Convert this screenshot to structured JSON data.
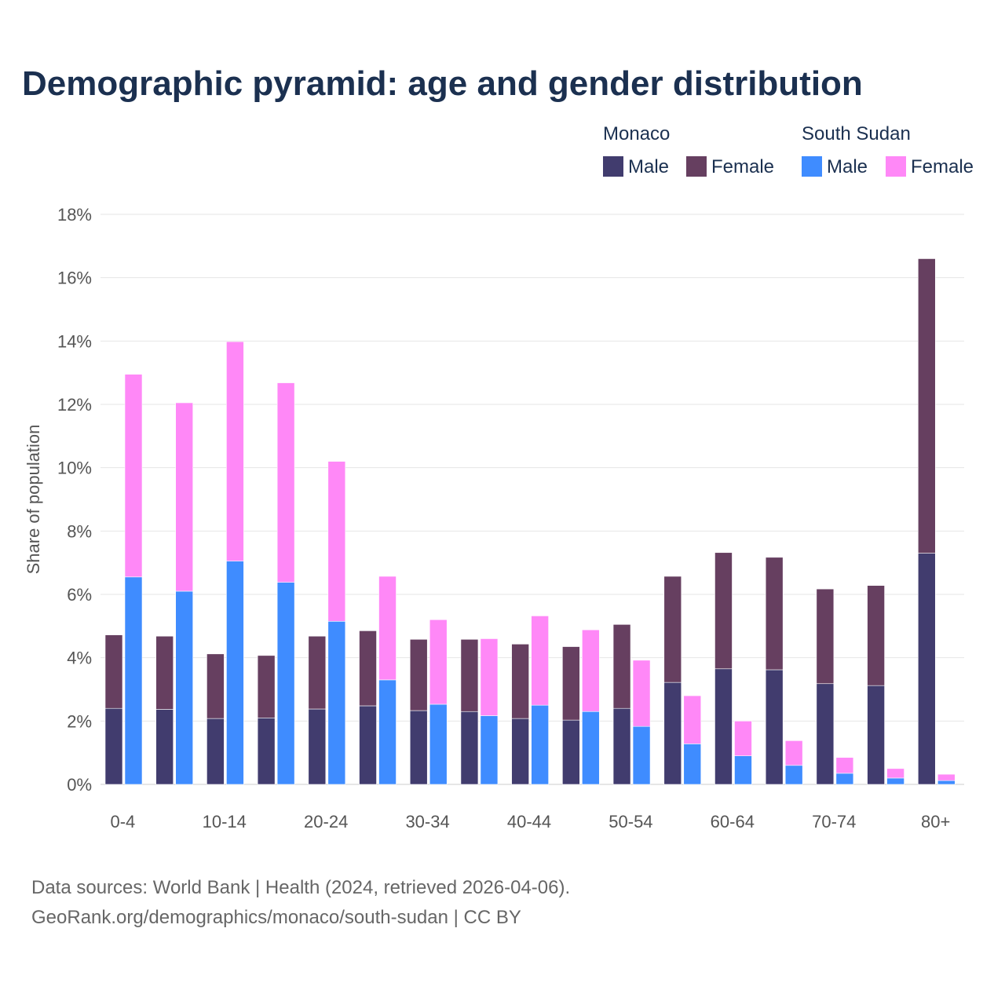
{
  "chart_data": {
    "type": "bar",
    "title": "Demographic pyramid: age and gender distribution",
    "ylabel": "Share of population",
    "xlabel": "",
    "ylim": [
      0,
      18
    ],
    "yticks": [
      "0%",
      "2%",
      "4%",
      "6%",
      "8%",
      "10%",
      "12%",
      "14%",
      "16%",
      "18%"
    ],
    "categories": [
      "0-4",
      "5-9",
      "10-14",
      "15-19",
      "20-24",
      "25-29",
      "30-34",
      "35-39",
      "40-44",
      "45-49",
      "50-54",
      "55-59",
      "60-64",
      "65-69",
      "70-74",
      "75-79",
      "80+"
    ],
    "xtick_labels": [
      "0-4",
      "10-14",
      "20-24",
      "30-34",
      "40-44",
      "50-54",
      "60-64",
      "70-74",
      "80+"
    ],
    "stacked": true,
    "groups": [
      {
        "name": "Monaco",
        "series": [
          {
            "name": "Male",
            "color": "#413c6e",
            "values": [
              2.4,
              2.37,
              2.08,
              2.1,
              2.38,
              2.48,
              2.33,
              2.3,
              2.08,
              2.03,
              2.4,
              3.22,
              3.65,
              3.62,
              3.18,
              3.12,
              7.3
            ]
          },
          {
            "name": "Female",
            "color": "#663f60",
            "values": [
              2.32,
              2.31,
              2.04,
              1.97,
              2.3,
              2.37,
              2.25,
              2.28,
              2.35,
              2.32,
              2.65,
              3.35,
              3.67,
              3.55,
              2.99,
              3.16,
              9.3
            ]
          }
        ]
      },
      {
        "name": "South Sudan",
        "series": [
          {
            "name": "Male",
            "color": "#3f8cff",
            "values": [
              6.55,
              6.1,
              7.05,
              6.38,
              5.15,
              3.3,
              2.53,
              2.17,
              2.5,
              2.3,
              1.83,
              1.28,
              0.9,
              0.6,
              0.35,
              0.2,
              0.12
            ]
          },
          {
            "name": "Female",
            "color": "#ff88f7",
            "values": [
              6.4,
              5.95,
              6.93,
              6.3,
              5.05,
              3.27,
              2.67,
              2.43,
              2.82,
              2.58,
              2.09,
              1.52,
              1.1,
              0.78,
              0.5,
              0.3,
              0.2
            ]
          }
        ]
      }
    ],
    "legend": "top-right",
    "grid": true
  },
  "footer": {
    "line1": "Data sources: World Bank | Health (2024, retrieved 2026-04-06).",
    "line2": "GeoRank.org/demographics/monaco/south-sudan | CC BY"
  }
}
